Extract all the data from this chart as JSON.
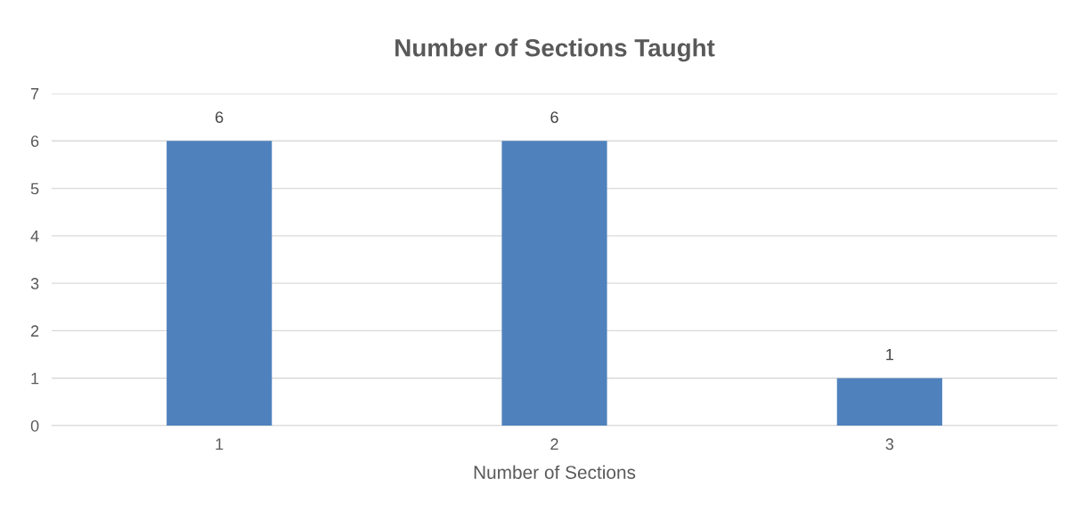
{
  "chart_data": {
    "type": "bar",
    "title": "Number of Sections Taught",
    "xlabel": "Number of Sections",
    "categories": [
      "1",
      "2",
      "3"
    ],
    "values": [
      6,
      6,
      1
    ],
    "color": "#4f81bd",
    "ylim": [
      0,
      7
    ],
    "yticks": [
      0,
      1,
      2,
      3,
      4,
      5,
      6,
      7
    ],
    "grid": "y",
    "data_labels": true
  }
}
